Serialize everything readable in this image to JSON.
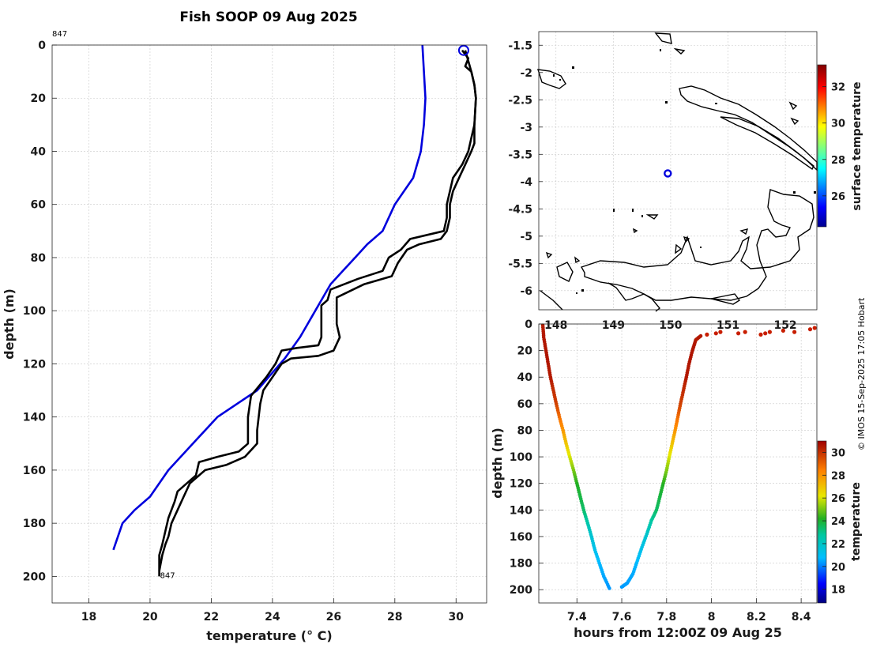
{
  "title": "Fish SOOP 09 Aug 2025",
  "credit": "© IMOS 15-Sep-2025 17:05 Hobart",
  "chart_data": [
    {
      "id": "profile",
      "type": "line",
      "xlabel": "temperature (° C)",
      "ylabel": "depth (m)",
      "xlim": [
        16.8,
        31.0
      ],
      "ylim": [
        0,
        210
      ],
      "y_inverted": true,
      "xticks": [
        18,
        20,
        22,
        24,
        26,
        28,
        30
      ],
      "yticks": [
        0,
        20,
        40,
        60,
        80,
        100,
        120,
        140,
        160,
        180,
        200
      ],
      "top_label": "847",
      "bottom_label": "847",
      "series": [
        {
          "name": "climatology",
          "color": "#0000dd",
          "points": [
            [
              28.9,
              0
            ],
            [
              28.95,
              10
            ],
            [
              29.0,
              20
            ],
            [
              28.95,
              30
            ],
            [
              28.85,
              40
            ],
            [
              28.6,
              50
            ],
            [
              28.3,
              55
            ],
            [
              28.0,
              60
            ],
            [
              27.6,
              70
            ],
            [
              27.1,
              75
            ],
            [
              26.7,
              80
            ],
            [
              26.3,
              85
            ],
            [
              25.9,
              90
            ],
            [
              25.4,
              100
            ],
            [
              24.9,
              110
            ],
            [
              24.4,
              118
            ],
            [
              23.5,
              130
            ],
            [
              22.2,
              140
            ],
            [
              21.4,
              150
            ],
            [
              20.6,
              160
            ],
            [
              20.0,
              170
            ],
            [
              19.5,
              175
            ],
            [
              19.1,
              180
            ],
            [
              18.8,
              190
            ]
          ]
        },
        {
          "name": "profile-down",
          "color": "#000000",
          "points": [
            [
              30.2,
              2
            ],
            [
              30.4,
              5
            ],
            [
              30.3,
              8
            ],
            [
              30.5,
              10
            ],
            [
              30.6,
              15
            ],
            [
              30.65,
              20
            ],
            [
              30.6,
              30
            ],
            [
              30.6,
              37
            ],
            [
              30.5,
              40
            ],
            [
              30.3,
              45
            ],
            [
              30.1,
              50
            ],
            [
              29.9,
              55
            ],
            [
              29.8,
              60
            ],
            [
              29.8,
              65
            ],
            [
              29.7,
              70
            ],
            [
              29.5,
              73
            ],
            [
              28.8,
              75
            ],
            [
              28.4,
              77
            ],
            [
              28.1,
              82
            ],
            [
              27.9,
              87
            ],
            [
              27.0,
              90
            ],
            [
              26.1,
              95
            ],
            [
              26.1,
              100
            ],
            [
              26.1,
              105
            ],
            [
              26.2,
              110
            ],
            [
              26.0,
              115
            ],
            [
              25.5,
              117
            ],
            [
              24.6,
              118
            ],
            [
              24.3,
              120
            ],
            [
              24.0,
              125
            ],
            [
              23.7,
              130
            ],
            [
              23.6,
              135
            ],
            [
              23.5,
              145
            ],
            [
              23.5,
              150
            ],
            [
              23.1,
              155
            ],
            [
              22.5,
              158
            ],
            [
              21.8,
              160
            ],
            [
              21.6,
              162
            ],
            [
              21.3,
              165
            ],
            [
              21.1,
              170
            ],
            [
              20.9,
              175
            ],
            [
              20.7,
              180
            ],
            [
              20.6,
              185
            ],
            [
              20.5,
              188
            ],
            [
              20.4,
              192
            ],
            [
              20.3,
              198
            ]
          ]
        },
        {
          "name": "profile-up",
          "color": "#000000",
          "points": [
            [
              30.3,
              2
            ],
            [
              30.4,
              6
            ],
            [
              30.5,
              10
            ],
            [
              30.6,
              15
            ],
            [
              30.65,
              20
            ],
            [
              30.6,
              30
            ],
            [
              30.5,
              35
            ],
            [
              30.4,
              40
            ],
            [
              30.2,
              45
            ],
            [
              29.9,
              50
            ],
            [
              29.8,
              55
            ],
            [
              29.7,
              60
            ],
            [
              29.7,
              65
            ],
            [
              29.6,
              70
            ],
            [
              28.5,
              73
            ],
            [
              28.2,
              77
            ],
            [
              27.8,
              80
            ],
            [
              27.6,
              85
            ],
            [
              26.8,
              88
            ],
            [
              25.9,
              92
            ],
            [
              25.8,
              96
            ],
            [
              25.6,
              98
            ],
            [
              25.6,
              105
            ],
            [
              25.6,
              110
            ],
            [
              25.5,
              113
            ],
            [
              24.8,
              114
            ],
            [
              24.3,
              115
            ],
            [
              24.1,
              120
            ],
            [
              23.8,
              125
            ],
            [
              23.3,
              132
            ],
            [
              23.2,
              140
            ],
            [
              23.2,
              150
            ],
            [
              22.9,
              153
            ],
            [
              22.2,
              155
            ],
            [
              21.6,
              157
            ],
            [
              21.5,
              162
            ],
            [
              21.2,
              165
            ],
            [
              20.9,
              168
            ],
            [
              20.8,
              172
            ],
            [
              20.6,
              178
            ],
            [
              20.5,
              183
            ],
            [
              20.4,
              188
            ],
            [
              20.3,
              192
            ],
            [
              20.3,
              200
            ]
          ]
        }
      ],
      "marker": {
        "name": "surface-position-marker",
        "x": 30.25,
        "y": 2,
        "color": "#0000dd"
      }
    },
    {
      "id": "map",
      "type": "scatter",
      "xlim": [
        147.7,
        152.55
      ],
      "ylim": [
        -6.35,
        -1.25
      ],
      "xticks": [
        "148",
        "149",
        "150",
        "151",
        "152"
      ],
      "yticks": [
        "-1.5",
        "-2",
        "-2.5",
        "-3",
        "-3.5",
        "-4",
        "-4.5",
        "-5",
        "-5.5",
        "-6"
      ],
      "ytick_values": [
        -1.5,
        -2,
        -2.5,
        -3,
        -3.5,
        -4,
        -4.5,
        -5,
        -5.5,
        -6
      ],
      "colorbar_label": "surface temperature",
      "colorbar_ticks": [
        "26",
        "28",
        "30",
        "32"
      ],
      "colorbar_range": [
        24.3,
        33.2
      ],
      "station": {
        "name": "station-marker",
        "lon": 149.95,
        "lat": -3.85,
        "color": "#0000dd"
      }
    },
    {
      "id": "timeseries",
      "type": "scatter",
      "xlabel": "hours from 12:00Z 09 Aug 25",
      "ylabel": "depth (m)",
      "xlim": [
        7.23,
        8.47
      ],
      "ylim": [
        0,
        210
      ],
      "y_inverted": true,
      "xticks": [
        "7.4",
        "7.6",
        "7.8",
        "8",
        "8.2",
        "8.4"
      ],
      "xtick_values": [
        7.4,
        7.6,
        7.8,
        8.0,
        8.2,
        8.4
      ],
      "yticks": [
        "0",
        "20",
        "40",
        "60",
        "80",
        "100",
        "120",
        "140",
        "160",
        "180",
        "200"
      ],
      "ytick_values": [
        0,
        20,
        40,
        60,
        80,
        100,
        120,
        140,
        160,
        180,
        200
      ],
      "colorbar_label": "temperature",
      "colorbar_ticks": [
        "18",
        "20",
        "22",
        "24",
        "26",
        "28",
        "30"
      ],
      "colorbar_range": [
        16.8,
        31.0
      ],
      "descent": [
        [
          7.248,
          1
        ],
        [
          7.252,
          10
        ],
        [
          7.262,
          20
        ],
        [
          7.272,
          30
        ],
        [
          7.282,
          40
        ],
        [
          7.295,
          50
        ],
        [
          7.308,
          60
        ],
        [
          7.322,
          70
        ],
        [
          7.338,
          80
        ],
        [
          7.352,
          90
        ],
        [
          7.368,
          100
        ],
        [
          7.385,
          110
        ],
        [
          7.4,
          120
        ],
        [
          7.415,
          130
        ],
        [
          7.43,
          140
        ],
        [
          7.448,
          150
        ],
        [
          7.465,
          160
        ],
        [
          7.48,
          170
        ],
        [
          7.5,
          180
        ],
        [
          7.52,
          190
        ],
        [
          7.545,
          199
        ]
      ],
      "ascent": [
        [
          7.6,
          198
        ],
        [
          7.625,
          195
        ],
        [
          7.65,
          188
        ],
        [
          7.67,
          178
        ],
        [
          7.69,
          168
        ],
        [
          7.712,
          158
        ],
        [
          7.732,
          148
        ],
        [
          7.755,
          140
        ],
        [
          7.77,
          130
        ],
        [
          7.785,
          120
        ],
        [
          7.8,
          110
        ],
        [
          7.812,
          100
        ],
        [
          7.825,
          90
        ],
        [
          7.838,
          80
        ],
        [
          7.85,
          70
        ],
        [
          7.862,
          60
        ],
        [
          7.875,
          50
        ],
        [
          7.888,
          40
        ],
        [
          7.9,
          30
        ],
        [
          7.915,
          20
        ],
        [
          7.93,
          12
        ],
        [
          7.952,
          9
        ]
      ],
      "surface_points": [
        [
          7.98,
          8
        ],
        [
          8.02,
          7
        ],
        [
          8.04,
          6
        ],
        [
          8.12,
          7
        ],
        [
          8.15,
          6
        ],
        [
          8.22,
          8
        ],
        [
          8.24,
          7
        ],
        [
          8.26,
          6
        ],
        [
          8.32,
          5
        ],
        [
          8.37,
          6
        ],
        [
          8.44,
          4
        ],
        [
          8.46,
          3
        ]
      ]
    }
  ]
}
